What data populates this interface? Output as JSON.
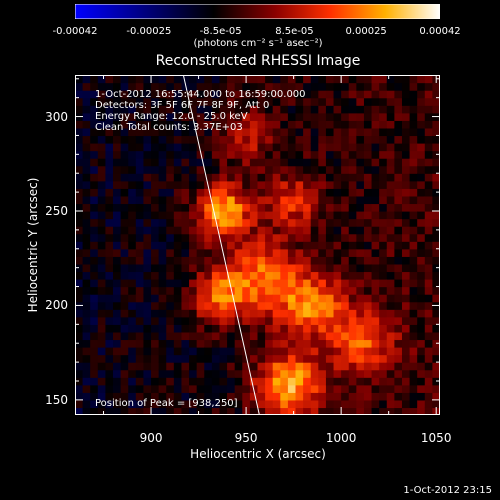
{
  "colorbar": {
    "tick_labels": [
      "-0.00042",
      "-0.00025",
      "-8.5e-05",
      "8.5e-05",
      "0.00025",
      "0.00042"
    ],
    "tick_values": [
      -0.00042,
      -0.00025,
      -8.5e-05,
      8.5e-05,
      0.00025,
      0.00042
    ],
    "units_label": "(photons cm⁻² s⁻¹ asec⁻²)",
    "range": [
      -0.00042,
      0.00042
    ]
  },
  "chart_data": {
    "type": "heatmap",
    "title": "Reconstructed RHESSI Image",
    "xlabel": "Heliocentric X (arcsec)",
    "ylabel": "Heliocentric Y (arcsec)",
    "xlim": [
      860,
      1052
    ],
    "ylim": [
      142,
      322
    ],
    "x_ticks": [
      "900",
      "950",
      "1000",
      "1050"
    ],
    "x_tick_values": [
      900,
      950,
      1000,
      1050
    ],
    "y_ticks": [
      "150",
      "200",
      "250",
      "300"
    ],
    "y_tick_values": [
      150,
      200,
      250,
      300
    ],
    "peak": [
      938,
      250
    ],
    "limb_line": {
      "x": [
        917,
        957
      ],
      "y": [
        322,
        142
      ]
    },
    "bright_sources": [
      {
        "x": 972,
        "y": 158,
        "sigma": 12,
        "amp": 0.00038
      },
      {
        "x": 938,
        "y": 250,
        "sigma": 10,
        "amp": 0.0004
      },
      {
        "x": 958,
        "y": 215,
        "sigma": 14,
        "amp": 0.0003
      },
      {
        "x": 985,
        "y": 200,
        "sigma": 12,
        "amp": 0.0003
      },
      {
        "x": 935,
        "y": 205,
        "sigma": 10,
        "amp": 0.00026
      },
      {
        "x": 1012,
        "y": 180,
        "sigma": 12,
        "amp": 0.00025
      },
      {
        "x": 950,
        "y": 290,
        "sigma": 10,
        "amp": 0.00018
      },
      {
        "x": 975,
        "y": 255,
        "sigma": 10,
        "amp": 0.00022
      }
    ],
    "colormap": [
      [
        0.0,
        "#0000ff"
      ],
      [
        0.38,
        "#000000"
      ],
      [
        0.55,
        "#8c0000"
      ],
      [
        0.7,
        "#ff3000"
      ],
      [
        0.85,
        "#ffb000"
      ],
      [
        1.0,
        "#ffffff"
      ]
    ],
    "background_color": "#6a3aa0"
  },
  "overlay": {
    "time_range": "1-Oct-2012 16:55:44.000 to 16:59:00.000",
    "detectors": "Detectors: 3F 5F 6F 7F 8F 9F, Att 0",
    "energy": "Energy Range: 12.0 - 25.0 keV",
    "clean": "Clean     Total counts: 3.37E+03",
    "peak_label": "Position of Peak = [938,250]"
  },
  "timestamp": "1-Oct-2012 23:15"
}
